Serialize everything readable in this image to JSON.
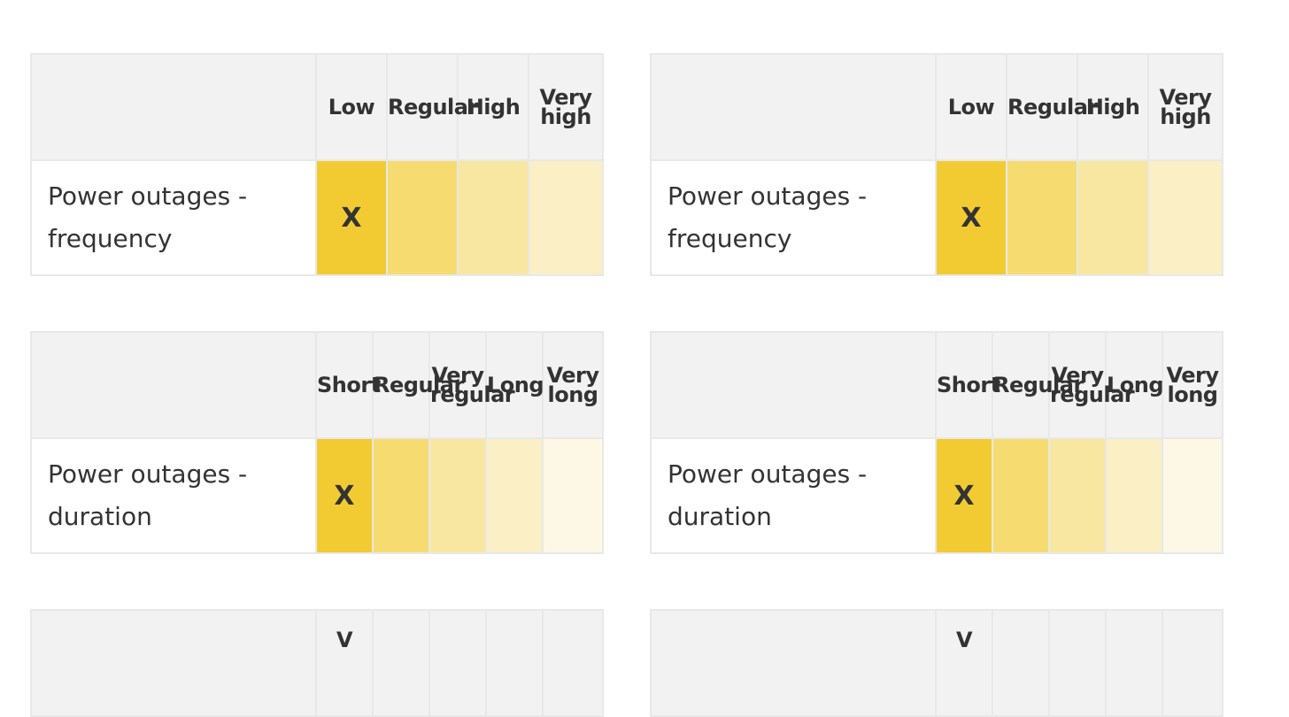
{
  "tables": [
    {
      "id": "freq-left",
      "row_label": "Power outages - frequency",
      "columns": [
        "Low",
        "Regular",
        "High",
        "Very high"
      ],
      "selected_index": 0,
      "mark": "X"
    },
    {
      "id": "freq-right",
      "row_label": "Power outages - frequency",
      "columns": [
        "Low",
        "Regular",
        "High",
        "Very high"
      ],
      "selected_index": 0,
      "mark": "X"
    },
    {
      "id": "dur-left",
      "row_label": "Power outages - duration",
      "columns": [
        "Short",
        "Regular",
        "Very regular",
        "Long",
        "Very long"
      ],
      "selected_index": 0,
      "mark": "X"
    },
    {
      "id": "dur-right",
      "row_label": "Power outages - duration",
      "columns": [
        "Short",
        "Regular",
        "Very regular",
        "Long",
        "Very long"
      ],
      "selected_index": 0,
      "mark": "X"
    }
  ],
  "partial_tables": [
    {
      "id": "third-left",
      "first_header_fragment": "V"
    },
    {
      "id": "third-right",
      "first_header_fragment": "V"
    }
  ],
  "colors": {
    "header_bg": "#f2f2f2",
    "border": "#e8e8e8",
    "level_colors": [
      "#f2cb33",
      "#f6dc70",
      "#f8e7a0",
      "#faefc5",
      "#fdf8e6"
    ]
  }
}
